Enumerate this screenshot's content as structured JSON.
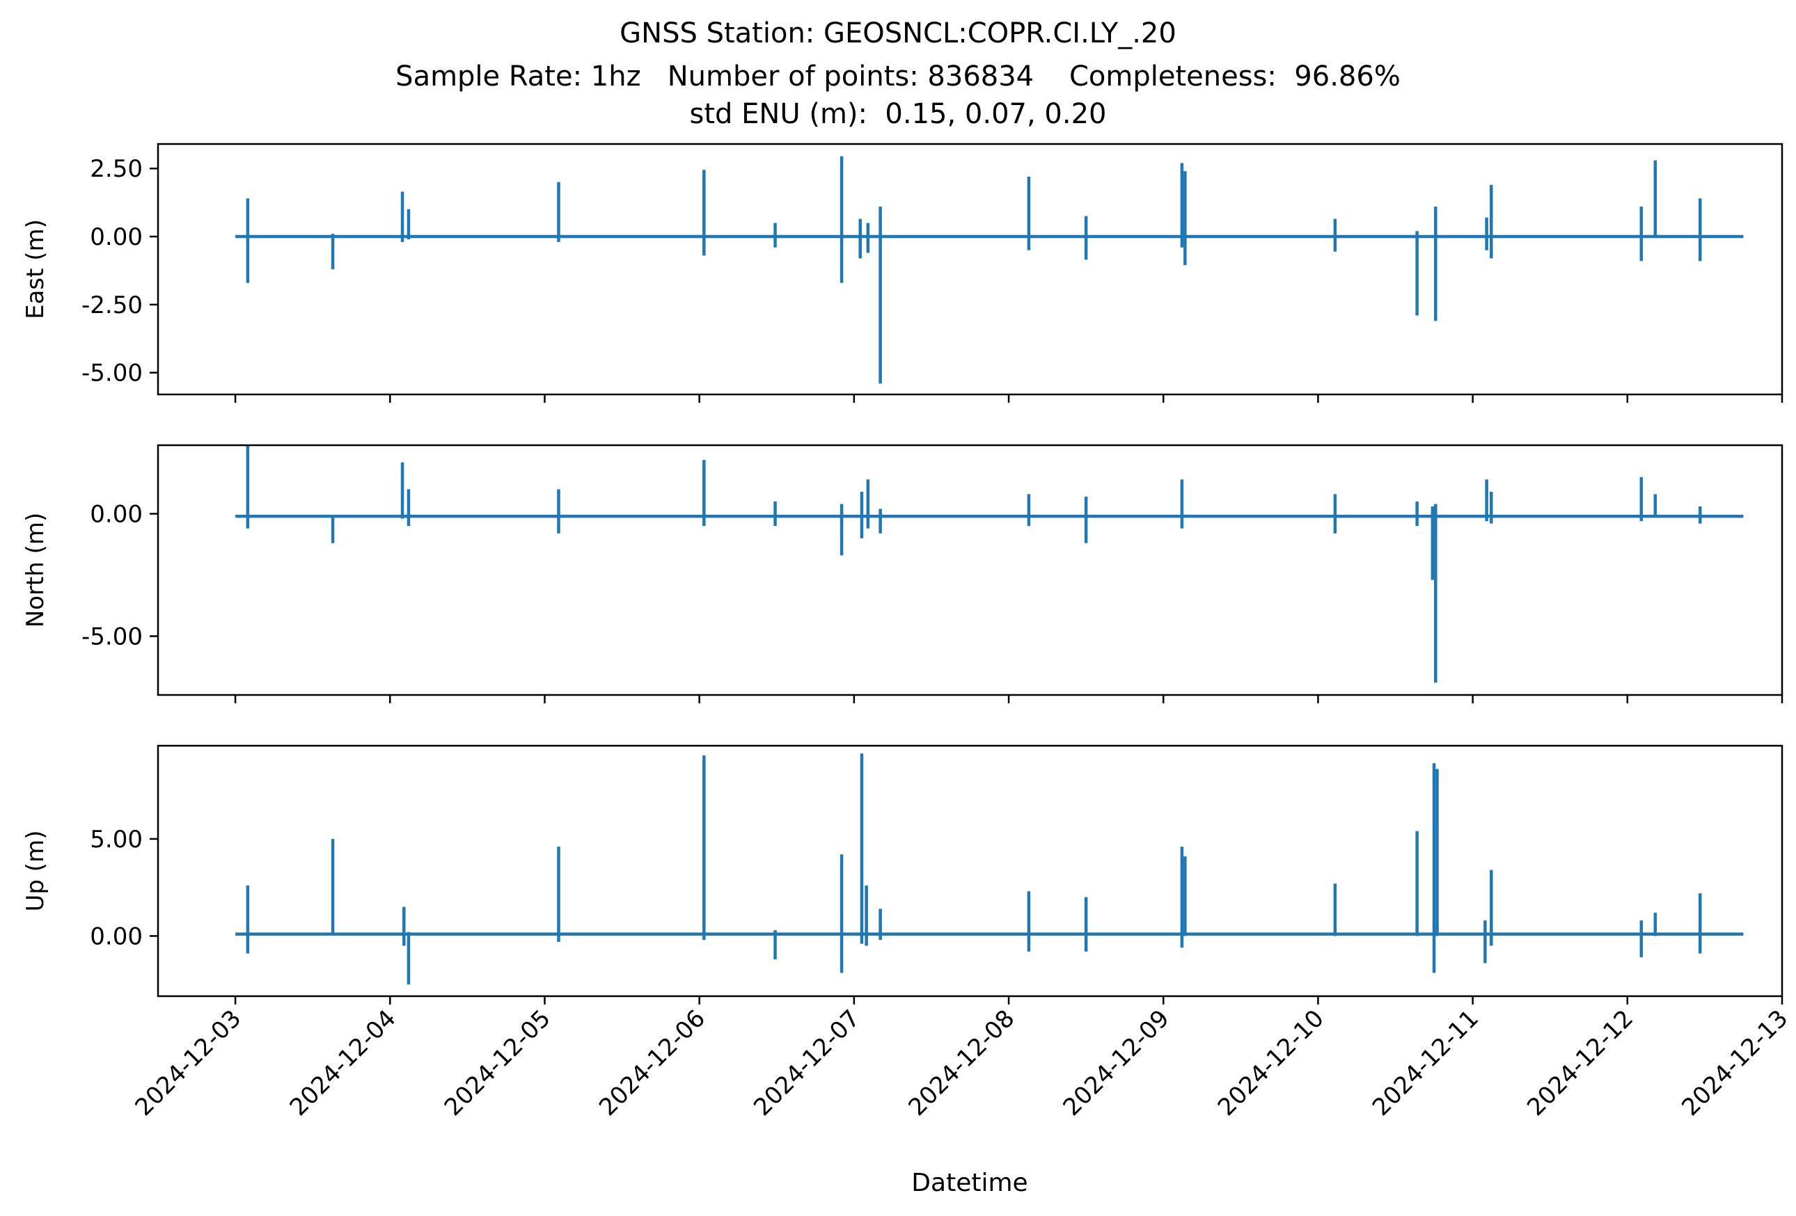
{
  "chart_data": {
    "type": "line",
    "title_lines": [
      "GNSS Station: GEOSNCL:COPR.CI.LY_.20",
      "Sample Rate: 1hz   Number of points: 836834    Completeness:  96.86%",
      "std ENU (m):  0.15, 0.07, 0.20"
    ],
    "xlabel": "Datetime",
    "x_ticks": [
      "2024-12-03",
      "2024-12-04",
      "2024-12-05",
      "2024-12-06",
      "2024-12-07",
      "2024-12-08",
      "2024-12-09",
      "2024-12-10",
      "2024-12-11",
      "2024-12-12",
      "2024-12-13"
    ],
    "x_range": [
      "2024-12-02T12:00",
      "2024-12-13T00:00"
    ],
    "series_color": "#1f77b4",
    "grid": false,
    "panels": [
      {
        "ylabel": "East (m)",
        "ylim": [
          -5.8,
          3.4
        ],
        "y_ticks": [
          -5.0,
          -2.5,
          0.0,
          2.5
        ],
        "y_tick_labels": [
          "-5.00",
          "-2.50",
          "0.00",
          "2.50"
        ],
        "baseline": 0.0,
        "spikes": [
          {
            "day": 0.08,
            "max": 1.4,
            "min": -1.7
          },
          {
            "day": 0.63,
            "max": 0.1,
            "min": -1.2
          },
          {
            "day": 1.08,
            "max": 1.65,
            "min": -0.2
          },
          {
            "day": 1.12,
            "max": 1.0,
            "min": -0.1
          },
          {
            "day": 2.09,
            "max": 2.0,
            "min": -0.2
          },
          {
            "day": 3.03,
            "max": 2.45,
            "min": -0.7
          },
          {
            "day": 3.49,
            "max": 0.5,
            "min": -0.4
          },
          {
            "day": 3.92,
            "max": 2.95,
            "min": -1.7
          },
          {
            "day": 4.04,
            "max": 0.65,
            "min": -0.8
          },
          {
            "day": 4.09,
            "max": 0.5,
            "min": -0.6
          },
          {
            "day": 4.17,
            "max": 1.1,
            "min": -5.4
          },
          {
            "day": 5.13,
            "max": 2.2,
            "min": -0.5
          },
          {
            "day": 5.5,
            "max": 0.75,
            "min": -0.85
          },
          {
            "day": 6.12,
            "max": 2.7,
            "min": -0.4
          },
          {
            "day": 6.14,
            "max": 2.4,
            "min": -1.05
          },
          {
            "day": 7.11,
            "max": 0.65,
            "min": -0.55
          },
          {
            "day": 7.64,
            "max": 0.2,
            "min": -2.9
          },
          {
            "day": 7.76,
            "max": 1.1,
            "min": -3.1
          },
          {
            "day": 8.09,
            "max": 0.7,
            "min": -0.5
          },
          {
            "day": 8.12,
            "max": 1.9,
            "min": -0.8
          },
          {
            "day": 9.09,
            "max": 1.1,
            "min": -0.9
          },
          {
            "day": 9.18,
            "max": 2.8,
            "min": 0.0
          },
          {
            "day": 9.47,
            "max": 1.4,
            "min": -0.9
          }
        ]
      },
      {
        "ylabel": "North (m)",
        "ylim": [
          -7.4,
          2.8
        ],
        "y_ticks": [
          -5.0,
          0.0
        ],
        "y_tick_labels": [
          "-5.00",
          "0.00"
        ],
        "baseline": -0.1,
        "spikes": [
          {
            "day": 0.08,
            "max": 2.8,
            "min": -0.6
          },
          {
            "day": 0.63,
            "max": -0.1,
            "min": -1.2
          },
          {
            "day": 1.08,
            "max": 2.1,
            "min": -0.2
          },
          {
            "day": 1.12,
            "max": 1.0,
            "min": -0.5
          },
          {
            "day": 2.09,
            "max": 1.0,
            "min": -0.8
          },
          {
            "day": 3.03,
            "max": 2.2,
            "min": -0.5
          },
          {
            "day": 3.49,
            "max": 0.5,
            "min": -0.5
          },
          {
            "day": 3.92,
            "max": 0.4,
            "min": -1.7
          },
          {
            "day": 4.05,
            "max": 0.9,
            "min": -1.0
          },
          {
            "day": 4.09,
            "max": 1.4,
            "min": -0.6
          },
          {
            "day": 4.17,
            "max": 0.2,
            "min": -0.8
          },
          {
            "day": 5.13,
            "max": 0.8,
            "min": -0.5
          },
          {
            "day": 5.5,
            "max": 0.7,
            "min": -1.2
          },
          {
            "day": 6.12,
            "max": 1.4,
            "min": -0.6
          },
          {
            "day": 7.11,
            "max": 0.8,
            "min": -0.8
          },
          {
            "day": 7.64,
            "max": 0.5,
            "min": -0.5
          },
          {
            "day": 7.74,
            "max": 0.3,
            "min": -2.7
          },
          {
            "day": 7.76,
            "max": 0.4,
            "min": -6.9
          },
          {
            "day": 8.09,
            "max": 1.4,
            "min": -0.3
          },
          {
            "day": 8.12,
            "max": 0.9,
            "min": -0.4
          },
          {
            "day": 9.09,
            "max": 1.5,
            "min": -0.3
          },
          {
            "day": 9.18,
            "max": 0.8,
            "min": -0.1
          },
          {
            "day": 9.47,
            "max": 0.3,
            "min": -0.4
          }
        ]
      },
      {
        "ylabel": "Up (m)",
        "ylim": [
          -3.1,
          9.8
        ],
        "y_ticks": [
          0.0,
          5.0
        ],
        "y_tick_labels": [
          "0.00",
          "5.00"
        ],
        "baseline": 0.1,
        "spikes": [
          {
            "day": 0.08,
            "max": 2.6,
            "min": -0.9
          },
          {
            "day": 0.63,
            "max": 5.0,
            "min": 0.1
          },
          {
            "day": 1.09,
            "max": 1.5,
            "min": -0.5
          },
          {
            "day": 1.12,
            "max": 0.2,
            "min": -2.5
          },
          {
            "day": 2.09,
            "max": 4.6,
            "min": -0.3
          },
          {
            "day": 3.03,
            "max": 9.3,
            "min": -0.2
          },
          {
            "day": 3.49,
            "max": 0.3,
            "min": -1.2
          },
          {
            "day": 3.92,
            "max": 4.2,
            "min": -1.9
          },
          {
            "day": 4.05,
            "max": 9.4,
            "min": -0.4
          },
          {
            "day": 4.08,
            "max": 2.6,
            "min": -0.5
          },
          {
            "day": 4.17,
            "max": 1.4,
            "min": -0.2
          },
          {
            "day": 5.13,
            "max": 2.3,
            "min": -0.8
          },
          {
            "day": 5.5,
            "max": 2.0,
            "min": -0.8
          },
          {
            "day": 6.12,
            "max": 4.6,
            "min": -0.6
          },
          {
            "day": 6.14,
            "max": 4.1,
            "min": 0.0
          },
          {
            "day": 7.11,
            "max": 2.7,
            "min": 0.0
          },
          {
            "day": 7.64,
            "max": 5.4,
            "min": 0.0
          },
          {
            "day": 7.75,
            "max": 8.9,
            "min": -1.9
          },
          {
            "day": 7.77,
            "max": 8.6,
            "min": 0.0
          },
          {
            "day": 8.08,
            "max": 0.8,
            "min": -1.4
          },
          {
            "day": 8.12,
            "max": 3.4,
            "min": -0.5
          },
          {
            "day": 9.09,
            "max": 0.8,
            "min": -1.1
          },
          {
            "day": 9.18,
            "max": 1.2,
            "min": 0.0
          },
          {
            "day": 9.47,
            "max": 2.2,
            "min": -0.9
          }
        ]
      }
    ]
  }
}
